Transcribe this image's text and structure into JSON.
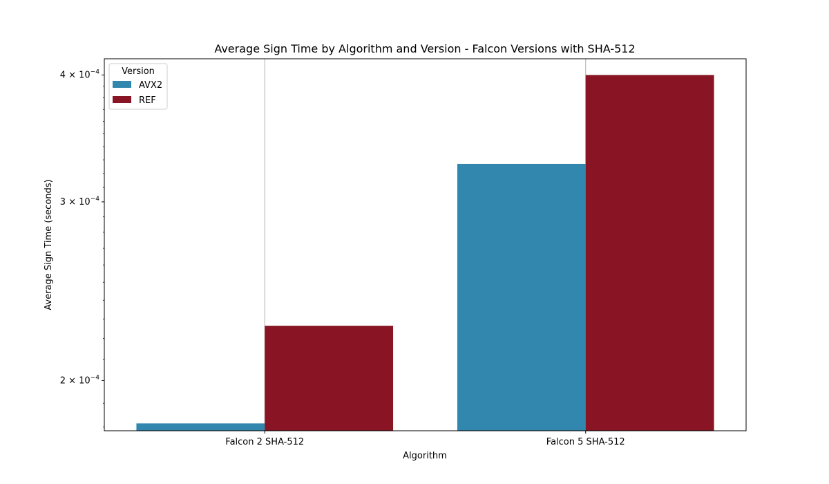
{
  "chart_data": {
    "type": "bar",
    "title": "Average Sign Time by Algorithm and Version - Falcon Versions with SHA-512",
    "xlabel": "Algorithm",
    "ylabel": "Average Sign Time (seconds)",
    "yscale": "log",
    "ylim": [
      0.0001785,
      0.000415
    ],
    "categories": [
      "Falcon 2 SHA-512",
      "Falcon 5 SHA-512"
    ],
    "series": [
      {
        "name": "AVX2",
        "color": "#3187ae",
        "values": [
          0.0001815,
          0.000327
        ]
      },
      {
        "name": "REF",
        "color": "#891524",
        "values": [
          0.0002265,
          0.0004
        ]
      }
    ],
    "y_ticks": [
      {
        "value": 0.0002,
        "mantissa": "2",
        "exponent": "−4"
      },
      {
        "value": 0.0003,
        "mantissa": "3",
        "exponent": "−4"
      },
      {
        "value": 0.0004,
        "mantissa": "4",
        "exponent": "−4"
      }
    ],
    "grid": "x-major",
    "legend": {
      "title": "Version",
      "placement": "upper-left"
    }
  }
}
